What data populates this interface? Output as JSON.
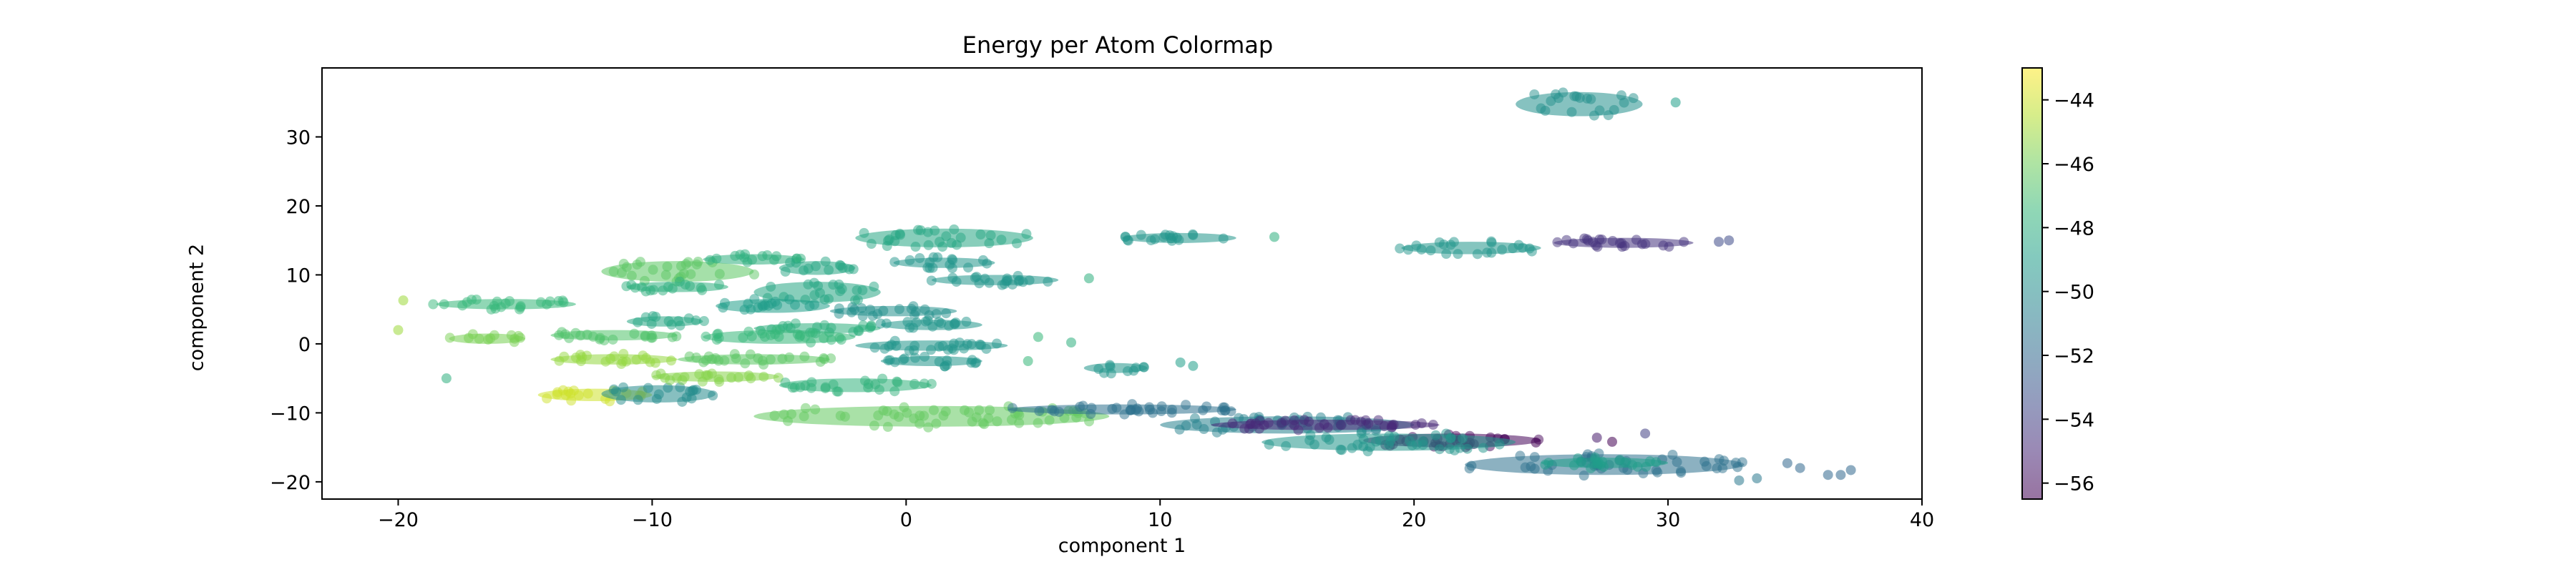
{
  "chart_data": {
    "type": "scatter",
    "title": "Energy per Atom Colormap",
    "xlabel": "component 1",
    "ylabel": "component 2",
    "xlim": [
      -23,
      40
    ],
    "ylim": [
      -22.5,
      40
    ],
    "xticks": [
      -20,
      -10,
      0,
      10,
      20,
      30,
      40
    ],
    "yticks": [
      -20,
      -10,
      0,
      10,
      20,
      30
    ],
    "grid": false,
    "colorbar": {
      "label": "",
      "range": [
        -56.5,
        -43
      ],
      "ticks": [
        -44,
        -46,
        -48,
        -50,
        -52,
        -54,
        -56
      ],
      "colormap": "viridis",
      "alpha": 0.55
    },
    "clusters": [
      {
        "x": [
          24,
          29
        ],
        "y": [
          33,
          36.5
        ],
        "value": -49.8
      },
      {
        "x": [
          8.5,
          13
        ],
        "y": [
          14.7,
          16
        ],
        "value": -49.5
      },
      {
        "x": [
          19.5,
          25
        ],
        "y": [
          13,
          14.8
        ],
        "value": -49.5
      },
      {
        "x": [
          25.5,
          31
        ],
        "y": [
          14,
          15.3
        ],
        "value": -54.5
      },
      {
        "x": [
          -2,
          5
        ],
        "y": [
          14,
          16.7
        ],
        "value": -48.5
      },
      {
        "x": [
          -0.5,
          3.5
        ],
        "y": [
          11,
          12.5
        ],
        "value": -49.5
      },
      {
        "x": [
          -12,
          -6
        ],
        "y": [
          9,
          12
        ],
        "value": -46.5
      },
      {
        "x": [
          -8,
          -4
        ],
        "y": [
          11.5,
          13
        ],
        "value": -48
      },
      {
        "x": [
          -5,
          -2
        ],
        "y": [
          10,
          12
        ],
        "value": -48.5
      },
      {
        "x": [
          1,
          6
        ],
        "y": [
          8.5,
          10
        ],
        "value": -49.5
      },
      {
        "x": [
          -11,
          -7
        ],
        "y": [
          7.5,
          9
        ],
        "value": -48
      },
      {
        "x": [
          -6,
          -1
        ],
        "y": [
          6,
          9
        ],
        "value": -48.5
      },
      {
        "x": [
          -7.5,
          -3
        ],
        "y": [
          4.5,
          6.5
        ],
        "value": -49
      },
      {
        "x": [
          -3,
          2
        ],
        "y": [
          4,
          5.5
        ],
        "value": -49.8
      },
      {
        "x": [
          -18.5,
          -13
        ],
        "y": [
          5,
          6.5
        ],
        "value": -47.5
      },
      {
        "x": [
          -11,
          -8
        ],
        "y": [
          2.5,
          4
        ],
        "value": -48.5
      },
      {
        "x": [
          -6,
          -1
        ],
        "y": [
          1.5,
          3
        ],
        "value": -48
      },
      {
        "x": [
          -1,
          3
        ],
        "y": [
          2,
          3.5
        ],
        "value": -49.5
      },
      {
        "x": [
          -18,
          -15
        ],
        "y": [
          0,
          1.5
        ],
        "value": -45.8
      },
      {
        "x": [
          -14,
          -9
        ],
        "y": [
          0.5,
          2
        ],
        "value": -46.8
      },
      {
        "x": [
          -8,
          -2
        ],
        "y": [
          0,
          2
        ],
        "value": -47.5
      },
      {
        "x": [
          -2,
          4
        ],
        "y": [
          -1,
          0.5
        ],
        "value": -49.5
      },
      {
        "x": [
          -14,
          -9
        ],
        "y": [
          -3,
          -1.5
        ],
        "value": -45.2
      },
      {
        "x": [
          -9,
          -3
        ],
        "y": [
          -3,
          -1.5
        ],
        "value": -46.5
      },
      {
        "x": [
          -1,
          3
        ],
        "y": [
          -3,
          -2
        ],
        "value": -49.5
      },
      {
        "x": [
          -14.5,
          -10
        ],
        "y": [
          -8.3,
          -6.5
        ],
        "value": -44
      },
      {
        "x": [
          -12,
          -7.5
        ],
        "y": [
          -8.5,
          -6
        ],
        "value": -50
      },
      {
        "x": [
          -10,
          -5
        ],
        "y": [
          -5.5,
          -4
        ],
        "value": -45.5
      },
      {
        "x": [
          -5,
          1
        ],
        "y": [
          -7,
          -5
        ],
        "value": -47.8
      },
      {
        "x": [
          -6,
          8
        ],
        "y": [
          -12,
          -9
        ],
        "value": -46.3
      },
      {
        "x": [
          4,
          13
        ],
        "y": [
          -10,
          -9
        ],
        "value": -51.5
      },
      {
        "x": [
          7,
          9.5
        ],
        "y": [
          -4,
          -3
        ],
        "value": -49.5
      },
      {
        "x": [
          10,
          20
        ],
        "y": [
          -13,
          -10.5
        ],
        "value": -50.5
      },
      {
        "x": [
          12,
          21
        ],
        "y": [
          -12.5,
          -11
        ],
        "value": -55
      },
      {
        "x": [
          18,
          25
        ],
        "y": [
          -15,
          -13
        ],
        "value": -56.3
      },
      {
        "x": [
          14,
          24
        ],
        "y": [
          -15.5,
          -13
        ],
        "value": -49.5
      },
      {
        "x": [
          22,
          33
        ],
        "y": [
          -19,
          -16
        ],
        "value": -51.5
      },
      {
        "x": [
          25,
          30
        ],
        "y": [
          -18,
          -16.5
        ],
        "value": -49
      }
    ],
    "outliers": [
      {
        "x": -19.8,
        "y": 6.3,
        "value": -45
      },
      {
        "x": -20,
        "y": 2,
        "value": -45
      },
      {
        "x": -18.1,
        "y": -5,
        "value": -48
      },
      {
        "x": 5.2,
        "y": 1,
        "value": -47.5
      },
      {
        "x": 4.8,
        "y": -2.5,
        "value": -47.5
      },
      {
        "x": 7.2,
        "y": 9.5,
        "value": -48
      },
      {
        "x": 6.5,
        "y": 0.2,
        "value": -48
      },
      {
        "x": 14.5,
        "y": 15.5,
        "value": -48
      },
      {
        "x": 11.3,
        "y": -3.2,
        "value": -49
      },
      {
        "x": 10.8,
        "y": -2.7,
        "value": -49
      },
      {
        "x": 30.3,
        "y": 35,
        "value": -49
      },
      {
        "x": 32,
        "y": 14.8,
        "value": -53.5
      },
      {
        "x": 32.4,
        "y": 15,
        "value": -53.5
      },
      {
        "x": 24.8,
        "y": -14.3,
        "value": -56.5
      },
      {
        "x": 27.2,
        "y": -13.6,
        "value": -55.5
      },
      {
        "x": 27.8,
        "y": -14.2,
        "value": -56.5
      },
      {
        "x": 29.1,
        "y": -13,
        "value": -54
      },
      {
        "x": 34.7,
        "y": -17.3,
        "value": -52
      },
      {
        "x": 35.2,
        "y": -18,
        "value": -52
      },
      {
        "x": 36.3,
        "y": -19,
        "value": -52
      },
      {
        "x": 36.8,
        "y": -19,
        "value": -52
      },
      {
        "x": 37.2,
        "y": -18.3,
        "value": -52
      },
      {
        "x": 33.5,
        "y": -19.5,
        "value": -51
      },
      {
        "x": 32.8,
        "y": -19.8,
        "value": -51
      }
    ]
  }
}
